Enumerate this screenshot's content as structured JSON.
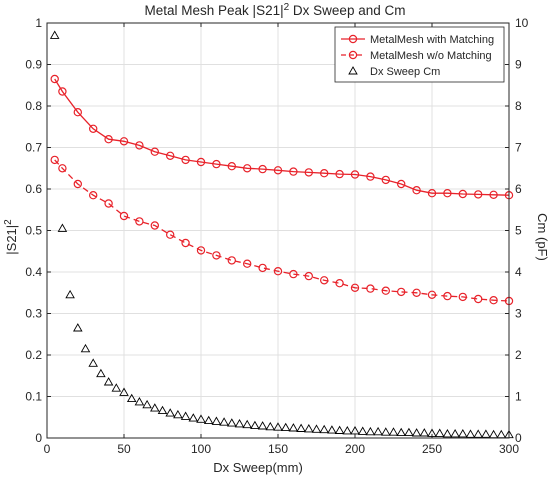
{
  "chart_data": {
    "type": "line",
    "title_main": "Metal Mesh Peak |S21|",
    "title_sup": "2",
    "title_rest": " Dx Sweep and Cm",
    "xlabel": "Dx Sweep(mm)",
    "ylabel_left_main": "|S21|",
    "ylabel_left_sup": "2",
    "ylabel_right": "Cm (pF)",
    "xlim": [
      0,
      300
    ],
    "ylim_left": [
      0,
      1
    ],
    "ylim_right": [
      0,
      10
    ],
    "x_ticks": [
      0,
      50,
      100,
      150,
      200,
      250,
      300
    ],
    "y_ticks_left": [
      "0",
      "0.1",
      "0.2",
      "0.3",
      "0.4",
      "0.5",
      "0.6",
      "0.7",
      "0.8",
      "0.9",
      "1"
    ],
    "y_ticks_right": [
      "0",
      "1",
      "2",
      "3",
      "4",
      "5",
      "6",
      "7",
      "8",
      "9",
      "10"
    ],
    "grid": true,
    "legend_position": "top-right",
    "colors": {
      "with_matching": "#e8222a",
      "without_matching": "#e8222a",
      "cm": "#000000"
    },
    "series": [
      {
        "name": "MetalMesh with Matching",
        "axis": "left",
        "style": "solid-circle",
        "x": [
          5,
          10,
          20,
          30,
          40,
          50,
          60,
          70,
          80,
          90,
          100,
          110,
          120,
          130,
          140,
          150,
          160,
          170,
          180,
          190,
          200,
          210,
          220,
          230,
          240,
          250,
          260,
          270,
          280,
          290,
          300
        ],
        "y": [
          0.865,
          0.835,
          0.785,
          0.745,
          0.72,
          0.715,
          0.705,
          0.69,
          0.68,
          0.67,
          0.665,
          0.66,
          0.655,
          0.65,
          0.648,
          0.645,
          0.642,
          0.64,
          0.638,
          0.636,
          0.635,
          0.63,
          0.622,
          0.612,
          0.597,
          0.59,
          0.59,
          0.588,
          0.587,
          0.586,
          0.585
        ]
      },
      {
        "name": "MetalMesh w/o Matching",
        "axis": "left",
        "style": "dashed-circle",
        "x": [
          5,
          10,
          20,
          30,
          40,
          50,
          60,
          70,
          80,
          90,
          100,
          110,
          120,
          130,
          140,
          150,
          160,
          170,
          180,
          190,
          200,
          210,
          220,
          230,
          240,
          250,
          260,
          270,
          280,
          290,
          300
        ],
        "y": [
          0.67,
          0.65,
          0.612,
          0.585,
          0.565,
          0.535,
          0.522,
          0.512,
          0.49,
          0.47,
          0.452,
          0.44,
          0.428,
          0.42,
          0.41,
          0.402,
          0.395,
          0.39,
          0.38,
          0.373,
          0.362,
          0.36,
          0.355,
          0.352,
          0.35,
          0.345,
          0.342,
          0.34,
          0.335,
          0.332,
          0.33
        ]
      },
      {
        "name": "Dx Sweep Cm",
        "axis": "right",
        "style": "triangle",
        "x": [
          5,
          10,
          15,
          20,
          25,
          30,
          35,
          40,
          45,
          50,
          55,
          60,
          65,
          70,
          75,
          80,
          85,
          90,
          95,
          100,
          105,
          110,
          115,
          120,
          125,
          130,
          135,
          140,
          145,
          150,
          155,
          160,
          165,
          170,
          175,
          180,
          185,
          190,
          195,
          200,
          205,
          210,
          215,
          220,
          225,
          230,
          235,
          240,
          245,
          250,
          255,
          260,
          265,
          270,
          275,
          280,
          285,
          290,
          295,
          300
        ],
        "y": [
          9.7,
          5.05,
          3.45,
          2.65,
          2.15,
          1.8,
          1.55,
          1.35,
          1.2,
          1.1,
          0.95,
          0.87,
          0.8,
          0.72,
          0.66,
          0.6,
          0.56,
          0.52,
          0.48,
          0.45,
          0.42,
          0.4,
          0.38,
          0.36,
          0.34,
          0.32,
          0.3,
          0.29,
          0.27,
          0.26,
          0.25,
          0.24,
          0.23,
          0.22,
          0.21,
          0.2,
          0.19,
          0.18,
          0.17,
          0.17,
          0.16,
          0.15,
          0.15,
          0.14,
          0.14,
          0.13,
          0.13,
          0.12,
          0.12,
          0.11,
          0.11,
          0.1,
          0.1,
          0.1,
          0.09,
          0.09,
          0.09,
          0.08,
          0.08,
          0.08
        ]
      }
    ]
  }
}
